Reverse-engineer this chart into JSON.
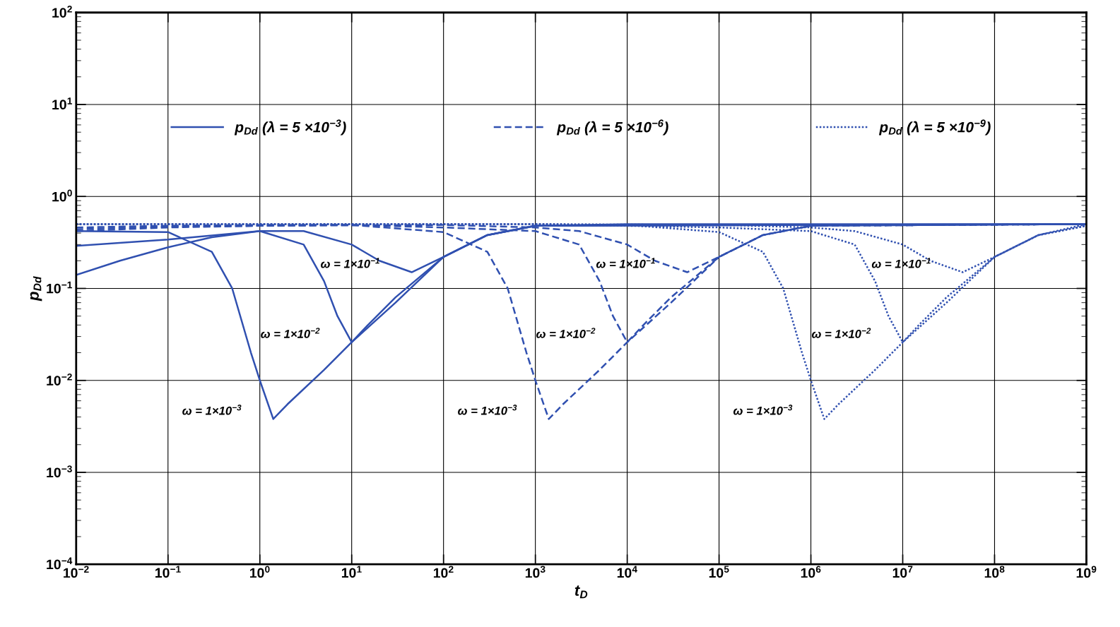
{
  "chart_data": {
    "type": "line",
    "xlabel": "t$_{D}$",
    "ylabel": "p$_{Dd}$",
    "log": "xy",
    "grid": true,
    "legend": "top",
    "marker": "none",
    "xlim": [
      0.01,
      1000000000
    ],
    "ylim": [
      0.0001,
      100
    ],
    "xticks": [
      {
        "value": 0.01,
        "label": "10$^{−2}$"
      },
      {
        "value": 0.1,
        "label": "10$^{−1}$"
      },
      {
        "value": 1,
        "label": "10$^{0}$"
      },
      {
        "value": 10,
        "label": "10$^{1}$"
      },
      {
        "value": 100,
        "label": "10$^{2}$"
      },
      {
        "value": 1000,
        "label": "10$^{3}$"
      },
      {
        "value": 10000,
        "label": "10$^{4}$"
      },
      {
        "value": 100000,
        "label": "10$^{5}$"
      },
      {
        "value": 1000000,
        "label": "10$^{6}$"
      },
      {
        "value": 10000000,
        "label": "10$^{7}$"
      },
      {
        "value": 100000000,
        "label": "10$^{8}$"
      },
      {
        "value": 1000000000,
        "label": "10$^{9}$"
      }
    ],
    "yticks": [
      {
        "value": 0.0001,
        "label": "10$^{−4}$"
      },
      {
        "value": 0.001,
        "label": "10$^{−3}$"
      },
      {
        "value": 0.01,
        "label": "10$^{−2}$"
      },
      {
        "value": 0.1,
        "label": "10$^{−1}$"
      },
      {
        "value": 1,
        "label": "10$^{0}$"
      },
      {
        "value": 10,
        "label": "10$^{1}$"
      },
      {
        "value": 100,
        "label": "10$^{2}$"
      }
    ],
    "series": [
      {
        "name": "p$_{Dd}$ (λ = 5 ×10$^{−3}$)",
        "color": "#3050b0",
        "line_style": "solid",
        "x": [
          0.01,
          0.03,
          0.1,
          0.3,
          1,
          3,
          10,
          20,
          45,
          100,
          300,
          1000,
          10000,
          1000000000
        ],
        "values": [
          0.14,
          0.2,
          0.28,
          0.36,
          0.42,
          0.42,
          0.3,
          0.2,
          0.15,
          0.22,
          0.38,
          0.48,
          0.5,
          0.5
        ]
      },
      {
        "color": "#3050b0",
        "line_style": "solid",
        "x": [
          0.01,
          0.1,
          1,
          3,
          5,
          7,
          10,
          15,
          30,
          100,
          300,
          1000,
          1000000000
        ],
        "values": [
          0.29,
          0.34,
          0.42,
          0.3,
          0.12,
          0.05,
          0.026,
          0.04,
          0.08,
          0.22,
          0.38,
          0.48,
          0.5
        ]
      },
      {
        "color": "#3050b0",
        "line_style": "solid",
        "x": [
          0.01,
          0.1,
          0.3,
          0.5,
          0.8,
          1,
          1.4,
          2,
          5,
          10,
          30,
          100,
          300,
          1000,
          1000000000
        ],
        "values": [
          0.42,
          0.41,
          0.25,
          0.1,
          0.02,
          0.01,
          0.0038,
          0.0055,
          0.013,
          0.026,
          0.07,
          0.22,
          0.38,
          0.48,
          0.5
        ]
      },
      {
        "name": "p$_{Dd}$ (λ = 5 ×10$^{−6}$)",
        "color": "#3050b0",
        "line_style": "dashed",
        "x": [
          0.01,
          0.1,
          1,
          100,
          1000,
          3000,
          10000,
          20000,
          45000,
          100000,
          300000,
          1000000,
          1000000000
        ],
        "values": [
          0.42,
          0.46,
          0.48,
          0.49,
          0.46,
          0.42,
          0.3,
          0.2,
          0.15,
          0.22,
          0.38,
          0.48,
          0.5
        ]
      },
      {
        "color": "#3050b0",
        "line_style": "dashed",
        "x": [
          0.01,
          0.1,
          10,
          100,
          1000,
          3000,
          5000,
          7000,
          10000,
          15000,
          30000,
          100000,
          300000,
          1000000,
          1000000000
        ],
        "values": [
          0.44,
          0.47,
          0.49,
          0.46,
          0.42,
          0.3,
          0.12,
          0.05,
          0.026,
          0.04,
          0.08,
          0.22,
          0.38,
          0.48,
          0.5
        ]
      },
      {
        "color": "#3050b0",
        "line_style": "dashed",
        "x": [
          0.01,
          0.1,
          1,
          10,
          100,
          300,
          500,
          800,
          1000,
          1400,
          2000,
          5000,
          10000,
          30000,
          100000,
          300000,
          1000000,
          1000000000
        ],
        "values": [
          0.46,
          0.48,
          0.49,
          0.49,
          0.41,
          0.25,
          0.1,
          0.02,
          0.01,
          0.0038,
          0.0055,
          0.013,
          0.026,
          0.07,
          0.22,
          0.38,
          0.48,
          0.5
        ]
      },
      {
        "name": "p$_{Dd}$ (λ = 5 ×10$^{−9}$)",
        "color": "#3050b0",
        "line_style": "dotted",
        "x": [
          0.01,
          1000,
          100000,
          1000000,
          3000000,
          10000000,
          20000000,
          45000000,
          100000000,
          300000000,
          1000000000
        ],
        "values": [
          0.5,
          0.5,
          0.49,
          0.46,
          0.42,
          0.3,
          0.2,
          0.15,
          0.22,
          0.38,
          0.48
        ]
      },
      {
        "color": "#3050b0",
        "line_style": "dotted",
        "x": [
          0.01,
          1000,
          100000,
          1000000,
          3000000,
          5000000,
          7000000,
          10000000,
          15000000,
          30000000,
          100000000,
          300000000,
          1000000000
        ],
        "values": [
          0.5,
          0.5,
          0.46,
          0.42,
          0.3,
          0.12,
          0.05,
          0.026,
          0.04,
          0.08,
          0.22,
          0.38,
          0.48
        ]
      },
      {
        "color": "#3050b0",
        "line_style": "dotted",
        "x": [
          0.01,
          1000,
          10000,
          100000,
          300000,
          500000,
          800000,
          1000000,
          1400000,
          2000000,
          5000000,
          10000000,
          30000000,
          100000000,
          300000000,
          1000000000
        ],
        "values": [
          0.5,
          0.5,
          0.49,
          0.41,
          0.25,
          0.1,
          0.02,
          0.01,
          0.0038,
          0.0055,
          0.013,
          0.026,
          0.07,
          0.22,
          0.38,
          0.5
        ]
      }
    ],
    "annotations": [
      "ω = 1×10$^{−1}$",
      "ω = 1×10$^{−2}$",
      "ω = 1×10$^{−3}$",
      "ω = 1×10$^{−1}$",
      "ω = 1×10$^{−2}$",
      "ω = 1×10$^{−3}$",
      "ω = 1×10$^{−1}$",
      "ω = 1×10$^{−2}$",
      "ω = 1×10$^{−3}$"
    ]
  }
}
